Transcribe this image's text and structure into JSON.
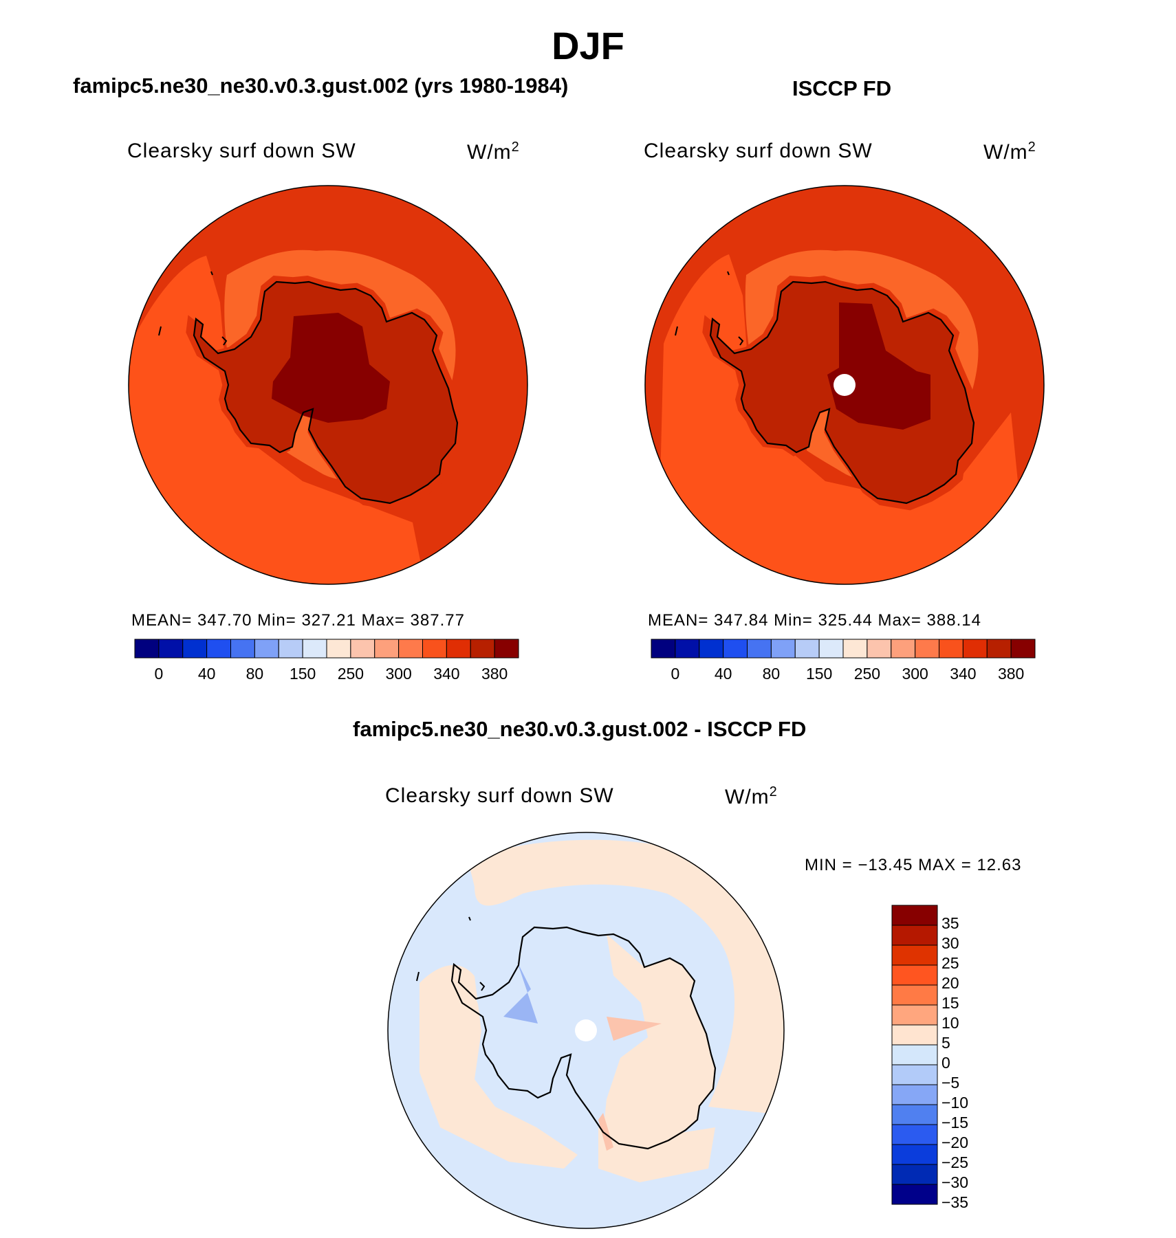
{
  "figure": {
    "season": "DJF",
    "variable": "Clearsky surf down SW",
    "units": "W/m",
    "units_superscript": "2"
  },
  "panels": {
    "model": {
      "title": "famipc5.ne30_ne30.v0.3.gust.002 (yrs 1980-1984)",
      "stats": "MEAN= 347.70   Min= 327.21   Max= 387.77"
    },
    "obs": {
      "title": "ISCCP FD",
      "stats": "MEAN= 347.84   Min= 325.44   Max= 388.14"
    },
    "diff": {
      "title": "famipc5.ne30_ne30.v0.3.gust.002 - ISCCP FD",
      "minmax": "MIN = −13.45 MAX =   12.63"
    }
  },
  "colorbars": {
    "abs": {
      "colors": [
        "#00007f",
        "#0010a8",
        "#0030d0",
        "#1f4ff0",
        "#4673f2",
        "#7fa1f7",
        "#b7ccf7",
        "#dce9fa",
        "#fde7d5",
        "#fcc4ad",
        "#fda07c",
        "#fe7a4b",
        "#f9521c",
        "#e02e04",
        "#b72000",
        "#870000"
      ],
      "labels": [
        "0",
        "40",
        "80",
        "150",
        "250",
        "300",
        "340",
        "380"
      ]
    },
    "diff": {
      "colors": [
        "#870000",
        "#b51800",
        "#df3300",
        "#ff5520",
        "#ff7a45",
        "#ffa67e",
        "#ffe4d0",
        "#d4e7fb",
        "#b2cbf9",
        "#86a7f6",
        "#5080f0",
        "#2b5bf0",
        "#0b3ddc",
        "#002ab4",
        "#00008a"
      ],
      "labels": [
        "35",
        "30",
        "25",
        "20",
        "15",
        "10",
        "5",
        "0",
        "−5",
        "−10",
        "−15",
        "−20",
        "−25",
        "−30",
        "−35"
      ]
    }
  },
  "map_colors": {
    "c_320": "#e23405",
    "c_330": "#fe5219",
    "c_340": "#fb6628",
    "c_350": "#e0340a",
    "c_360": "#bd2302",
    "c_380": "#870000",
    "diff_pos": "#fde7d5",
    "diff_neg": "#d9e8fc",
    "diff_neg2": "#b5cbf7",
    "diff_neg3": "#9ab5f4",
    "diff_pos2": "#fcc4ad"
  }
}
